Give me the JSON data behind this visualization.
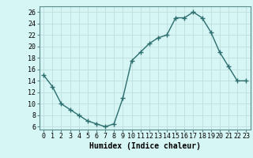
{
  "x": [
    0,
    1,
    2,
    3,
    4,
    5,
    6,
    7,
    8,
    9,
    10,
    11,
    12,
    13,
    14,
    15,
    16,
    17,
    18,
    19,
    20,
    21,
    22,
    23
  ],
  "y": [
    15,
    13,
    10,
    9,
    8,
    7,
    6.5,
    6,
    6.5,
    11,
    17.5,
    19,
    20.5,
    21.5,
    22,
    25,
    25,
    26,
    25,
    22.5,
    19,
    16.5,
    14,
    14
  ],
  "line_color": "#2d6e6e",
  "marker": "+",
  "marker_size": 4,
  "bg_color": "#d6f5f5",
  "grid_color": "#c0dede",
  "xlabel": "Humidex (Indice chaleur)",
  "xlim": [
    -0.5,
    23.5
  ],
  "ylim": [
    5.5,
    27
  ],
  "yticks": [
    6,
    8,
    10,
    12,
    14,
    16,
    18,
    20,
    22,
    24,
    26
  ],
  "xticks": [
    0,
    1,
    2,
    3,
    4,
    5,
    6,
    7,
    8,
    9,
    10,
    11,
    12,
    13,
    14,
    15,
    16,
    17,
    18,
    19,
    20,
    21,
    22,
    23
  ],
  "xlabel_fontsize": 7,
  "tick_fontsize": 6,
  "line_width": 1.0
}
